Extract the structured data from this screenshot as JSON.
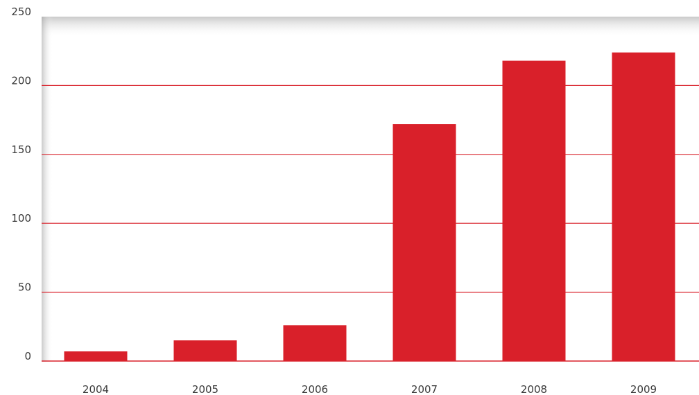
{
  "chart_data": {
    "type": "bar",
    "categories": [
      "2004",
      "2005",
      "2006",
      "2007",
      "2008",
      "2009"
    ],
    "values": [
      7,
      15,
      26,
      172,
      218,
      224
    ],
    "title": "",
    "xlabel": "",
    "ylabel": "",
    "ylim": [
      0,
      250
    ],
    "yticks": [
      "0",
      "50",
      "100",
      "150",
      "200",
      "250"
    ],
    "grid": true,
    "legend": "none",
    "colors": {
      "bar": "#d9202a",
      "grid": "#d9202a",
      "shadow": "#b5b5b5"
    }
  }
}
